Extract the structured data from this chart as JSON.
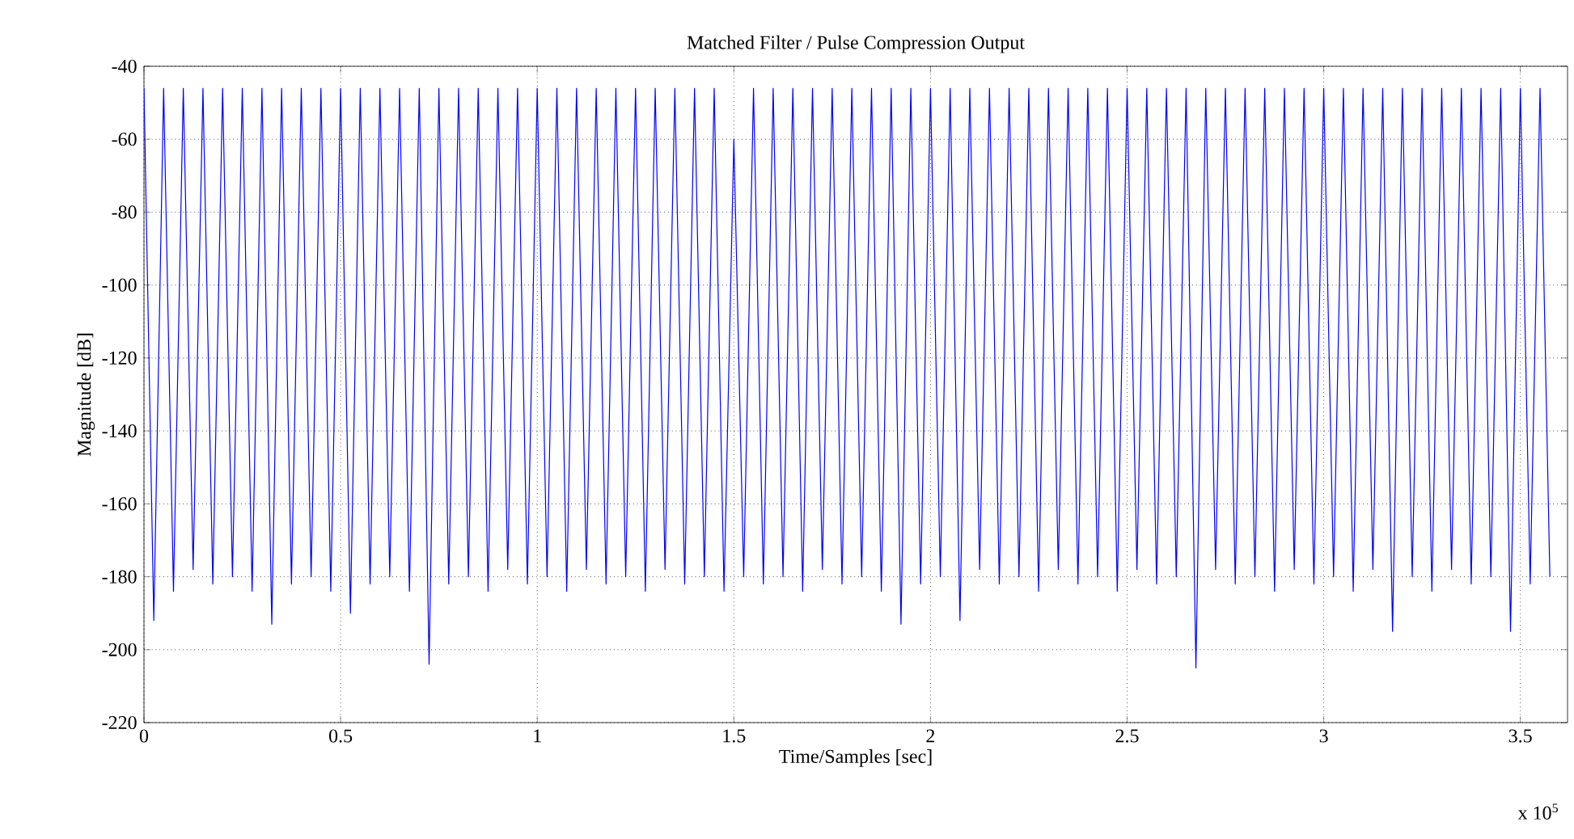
{
  "chart_data": {
    "type": "line",
    "title": "Matched Filter / Pulse Compression Output",
    "xlabel": "Time/Samples [sec]",
    "ylabel": "Magnitude [dB]",
    "annotations": [
      "x 10$^{5}$"
    ],
    "xlim": [
      0,
      3.62
    ],
    "ylim": [
      -220,
      -40
    ],
    "xticks": [
      0,
      0.5,
      1,
      1.5,
      2,
      2.5,
      3,
      3.5
    ],
    "yticks": [
      -220,
      -200,
      -180,
      -160,
      -140,
      -120,
      -100,
      -80,
      -60,
      -40
    ],
    "grid": true,
    "marker": "none",
    "line_style": "solid",
    "series": [
      {
        "color": "#0000ff",
        "x": [
          0,
          0.025,
          0.05,
          0.075,
          0.1,
          0.125,
          0.15,
          0.175,
          0.2,
          0.225,
          0.25,
          0.275,
          0.3,
          0.325,
          0.35,
          0.375,
          0.4,
          0.425,
          0.45,
          0.475,
          0.5,
          0.525,
          0.55,
          0.575,
          0.6,
          0.625,
          0.65,
          0.675,
          0.7,
          0.725,
          0.75,
          0.775,
          0.8,
          0.825,
          0.85,
          0.875,
          0.9,
          0.925,
          0.95,
          0.975,
          1,
          1.025,
          1.05,
          1.075,
          1.1,
          1.125,
          1.15,
          1.175,
          1.2,
          1.225,
          1.25,
          1.275,
          1.3,
          1.325,
          1.35,
          1.375,
          1.4,
          1.425,
          1.45,
          1.475,
          1.5,
          1.525,
          1.55,
          1.575,
          1.6,
          1.625,
          1.65,
          1.675,
          1.7,
          1.725,
          1.75,
          1.775,
          1.8,
          1.825,
          1.85,
          1.875,
          1.9,
          1.925,
          1.95,
          1.975,
          2,
          2.025,
          2.05,
          2.075,
          2.1,
          2.125,
          2.15,
          2.175,
          2.2,
          2.225,
          2.25,
          2.275,
          2.3,
          2.325,
          2.35,
          2.375,
          2.4,
          2.425,
          2.45,
          2.475,
          2.5,
          2.525,
          2.55,
          2.575,
          2.6,
          2.625,
          2.65,
          2.675,
          2.7,
          2.725,
          2.75,
          2.775,
          2.8,
          2.825,
          2.85,
          2.875,
          2.9,
          2.925,
          2.95,
          2.975,
          3,
          3.025,
          3.05,
          3.075,
          3.1,
          3.125,
          3.15,
          3.175,
          3.2,
          3.225,
          3.25,
          3.275,
          3.3,
          3.325,
          3.35,
          3.375,
          3.4,
          3.425,
          3.45,
          3.475,
          3.5,
          3.525,
          3.55,
          3.575
        ],
        "values": [
          -46,
          -192,
          -46,
          -184,
          -46,
          -178,
          -46,
          -182,
          -46,
          -180,
          -46,
          -184,
          -46,
          -193,
          -46,
          -182,
          -46,
          -180,
          -46,
          -184,
          -46,
          -190,
          -46,
          -182,
          -46,
          -180,
          -46,
          -184,
          -46,
          -204,
          -46,
          -182,
          -46,
          -180,
          -46,
          -184,
          -46,
          -178,
          -46,
          -182,
          -46,
          -180,
          -46,
          -184,
          -46,
          -178,
          -46,
          -182,
          -46,
          -180,
          -46,
          -184,
          -46,
          -178,
          -46,
          -182,
          -46,
          -180,
          -46,
          -184,
          -60,
          -180,
          -46,
          -182,
          -46,
          -180,
          -46,
          -184,
          -46,
          -178,
          -46,
          -182,
          -46,
          -180,
          -46,
          -184,
          -46,
          -193,
          -46,
          -182,
          -46,
          -180,
          -46,
          -192,
          -46,
          -178,
          -46,
          -182,
          -46,
          -180,
          -46,
          -184,
          -46,
          -178,
          -46,
          -182,
          -46,
          -180,
          -46,
          -184,
          -46,
          -178,
          -46,
          -182,
          -46,
          -180,
          -46,
          -205,
          -46,
          -178,
          -46,
          -182,
          -46,
          -180,
          -46,
          -184,
          -46,
          -178,
          -46,
          -182,
          -46,
          -180,
          -46,
          -184,
          -46,
          -178,
          -46,
          -195,
          -46,
          -180,
          -46,
          -184,
          -46,
          -178,
          -46,
          -182,
          -46,
          -180,
          -46,
          -195,
          -46,
          -182,
          -46,
          -180
        ]
      }
    ]
  }
}
